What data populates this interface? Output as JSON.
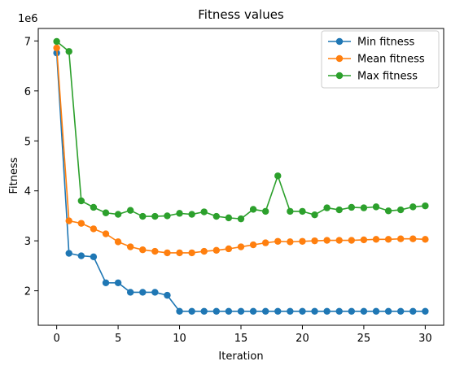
{
  "chart_data": {
    "type": "line",
    "title": "Fitness values",
    "xlabel": "Iteration",
    "ylabel": "Fitness",
    "y_multiplier_label": "1e6",
    "xlim": [
      -1.5,
      31.5
    ],
    "ylim": [
      1.31,
      7.25
    ],
    "x_ticks": [
      0,
      5,
      10,
      15,
      20,
      25,
      30
    ],
    "y_ticks": [
      2,
      3,
      4,
      5,
      6,
      7
    ],
    "grid": false,
    "legend_position": "top-right",
    "x": [
      0,
      1,
      2,
      3,
      4,
      5,
      6,
      7,
      8,
      9,
      10,
      11,
      12,
      13,
      14,
      15,
      16,
      17,
      18,
      19,
      20,
      21,
      22,
      23,
      24,
      25,
      26,
      27,
      28,
      29,
      30
    ],
    "series": [
      {
        "name": "Min fitness",
        "color": "#1f77b4",
        "values": [
          6.76,
          2.75,
          2.7,
          2.68,
          2.16,
          2.16,
          1.97,
          1.97,
          1.97,
          1.91,
          1.59,
          1.59,
          1.59,
          1.59,
          1.59,
          1.59,
          1.59,
          1.59,
          1.59,
          1.59,
          1.59,
          1.59,
          1.59,
          1.59,
          1.59,
          1.59,
          1.59,
          1.59,
          1.59,
          1.59,
          1.59
        ]
      },
      {
        "name": "Mean fitness",
        "color": "#ff7f0e",
        "values": [
          6.86,
          3.4,
          3.35,
          3.24,
          3.14,
          2.98,
          2.88,
          2.82,
          2.79,
          2.76,
          2.76,
          2.76,
          2.79,
          2.81,
          2.84,
          2.88,
          2.92,
          2.96,
          2.99,
          2.98,
          2.99,
          3.0,
          3.01,
          3.01,
          3.01,
          3.02,
          3.03,
          3.03,
          3.04,
          3.04,
          3.03
        ]
      },
      {
        "name": "Max fitness",
        "color": "#2ca02c",
        "values": [
          6.99,
          6.79,
          3.8,
          3.67,
          3.56,
          3.53,
          3.61,
          3.49,
          3.49,
          3.5,
          3.55,
          3.53,
          3.58,
          3.49,
          3.46,
          3.44,
          3.63,
          3.59,
          4.3,
          3.59,
          3.59,
          3.52,
          3.66,
          3.62,
          3.67,
          3.66,
          3.68,
          3.6,
          3.62,
          3.68,
          3.7
        ]
      }
    ]
  }
}
